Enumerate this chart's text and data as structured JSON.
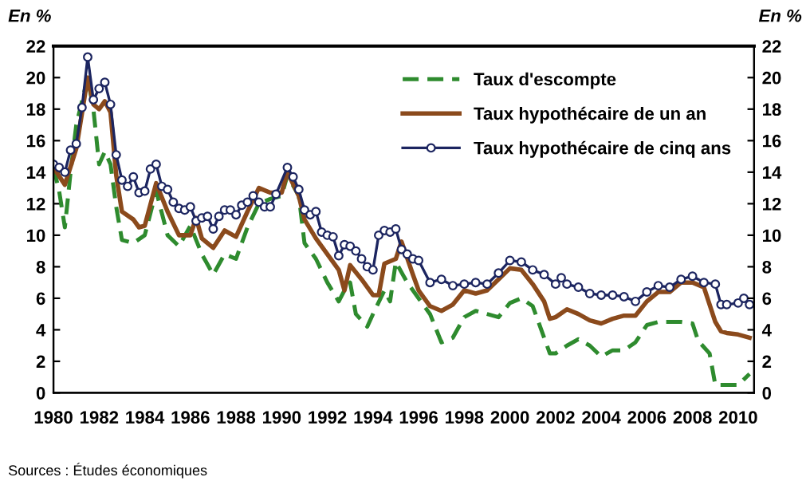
{
  "chart_data": {
    "type": "line",
    "ylabel": "En %",
    "y2label": "En %",
    "xlim": [
      1980,
      2010.7
    ],
    "xticks": [
      1980,
      1982,
      1984,
      1986,
      1988,
      1990,
      1992,
      1994,
      1996,
      1998,
      2000,
      2002,
      2004,
      2006,
      2008,
      2010
    ],
    "ylim": [
      0,
      22
    ],
    "yticks": [
      0,
      2,
      4,
      6,
      8,
      10,
      12,
      14,
      16,
      18,
      20,
      22
    ],
    "y2lim": [
      0,
      22
    ],
    "y2ticks": [
      0,
      2,
      4,
      6,
      8,
      10,
      12,
      14,
      16,
      18,
      20,
      22
    ],
    "grid": false,
    "legend": "top right",
    "annotations": [
      "Sources : Études économiques"
    ],
    "series": [
      {
        "name": "Taux d'escompte",
        "color": "#2e8b2e",
        "line_style": "dashed",
        "marker": "none",
        "x": [
          1980,
          1980.25,
          1980.5,
          1980.75,
          1981,
          1981.5,
          1981.75,
          1982,
          1982.25,
          1982.5,
          1982.75,
          1983,
          1983.5,
          1984,
          1984.5,
          1985,
          1985.5,
          1986,
          1986.5,
          1987,
          1987.5,
          1988,
          1988.5,
          1989,
          1989.5,
          1990,
          1990.25,
          1990.75,
          1991,
          1991.5,
          1992,
          1992.5,
          1992.75,
          1993,
          1993.25,
          1993.75,
          1994,
          1994.5,
          1994.75,
          1995,
          1995.5,
          1996,
          1996.5,
          1997,
          1997.5,
          1998,
          1998.5,
          1999,
          1999.5,
          2000,
          2000.5,
          2001,
          2001.5,
          2001.75,
          2002,
          2002.5,
          2003,
          2003.5,
          2004,
          2004.5,
          2005,
          2005.5,
          2006,
          2006.5,
          2007,
          2007.5,
          2008,
          2008.25,
          2008.75,
          2009,
          2009.5,
          2010,
          2010.5
        ],
        "values": [
          14.3,
          12.8,
          10.5,
          14.0,
          17.0,
          20.0,
          18.0,
          14.5,
          15.3,
          14.5,
          11.8,
          9.7,
          9.5,
          10.0,
          12.8,
          10.0,
          9.3,
          10.6,
          8.8,
          7.5,
          8.8,
          8.5,
          10.5,
          12.0,
          12.3,
          12.5,
          13.8,
          12.5,
          9.5,
          8.5,
          7.0,
          5.8,
          6.5,
          7.0,
          5.0,
          4.2,
          5.0,
          6.5,
          5.8,
          8.3,
          7.0,
          6.0,
          5.0,
          3.2,
          3.5,
          4.8,
          5.2,
          5.0,
          4.8,
          5.7,
          6.0,
          5.5,
          3.5,
          2.5,
          2.5,
          3.0,
          3.4,
          3.0,
          2.3,
          2.7,
          2.7,
          3.2,
          4.3,
          4.5,
          4.5,
          4.5,
          4.4,
          3.3,
          2.5,
          0.5,
          0.5,
          0.5,
          1.2
        ]
      },
      {
        "name": "Taux hypothécaire de un an",
        "color": "#8b4a1c",
        "line_style": "solid",
        "marker": "none",
        "x": [
          1980,
          1980.5,
          1981,
          1981.5,
          1981.75,
          1982,
          1982.25,
          1982.5,
          1982.75,
          1983,
          1983.5,
          1983.75,
          1984,
          1984.5,
          1985,
          1985.5,
          1986,
          1986.25,
          1986.5,
          1987,
          1987.5,
          1988,
          1988.5,
          1989,
          1989.5,
          1990,
          1990.25,
          1990.75,
          1991,
          1991.5,
          1992,
          1992.5,
          1992.75,
          1993,
          1993.5,
          1994,
          1994.25,
          1994.5,
          1995,
          1995.25,
          1995.75,
          1996,
          1996.5,
          1997,
          1997.5,
          1998,
          1998.5,
          1999,
          1999.5,
          2000,
          2000.5,
          2001,
          2001.5,
          2001.75,
          2002,
          2002.5,
          2003,
          2003.5,
          2004,
          2004.5,
          2005,
          2005.5,
          2006,
          2006.5,
          2007,
          2007.5,
          2008,
          2008.5,
          2009,
          2009.25,
          2009.5,
          2010,
          2010.5
        ],
        "values": [
          14.3,
          13.2,
          15.5,
          20.0,
          18.3,
          18.0,
          18.5,
          17.8,
          13.8,
          11.5,
          11.0,
          10.5,
          10.6,
          13.3,
          11.5,
          10.0,
          10.0,
          11.1,
          9.8,
          9.2,
          10.3,
          9.9,
          11.5,
          13.0,
          12.7,
          12.7,
          14.0,
          12.5,
          11.0,
          9.8,
          8.8,
          7.8,
          6.5,
          8.1,
          7.2,
          6.2,
          6.2,
          8.2,
          8.5,
          9.6,
          7.5,
          6.5,
          5.5,
          5.2,
          5.6,
          6.5,
          6.3,
          6.5,
          7.2,
          7.9,
          7.8,
          6.9,
          5.8,
          4.7,
          4.8,
          5.3,
          5.0,
          4.6,
          4.4,
          4.7,
          4.9,
          4.9,
          5.8,
          6.4,
          6.4,
          7.0,
          7.0,
          6.7,
          4.5,
          3.9,
          3.8,
          3.7,
          3.5
        ]
      },
      {
        "name": "Taux hypothécaire de cinq ans",
        "color": "#1c2560",
        "line_style": "solid",
        "marker": "circle",
        "x": [
          1980,
          1980.25,
          1980.5,
          1980.75,
          1981,
          1981.25,
          1981.5,
          1981.75,
          1982,
          1982.25,
          1982.5,
          1982.75,
          1983,
          1983.25,
          1983.5,
          1983.75,
          1984,
          1984.25,
          1984.5,
          1984.75,
          1985,
          1985.25,
          1985.5,
          1985.75,
          1986,
          1986.25,
          1986.5,
          1986.75,
          1987,
          1987.25,
          1987.5,
          1987.75,
          1988,
          1988.25,
          1988.5,
          1988.75,
          1989,
          1989.25,
          1989.5,
          1989.75,
          1990.25,
          1990.5,
          1990.75,
          1991,
          1991.25,
          1991.5,
          1991.75,
          1992,
          1992.25,
          1992.5,
          1992.75,
          1993,
          1993.25,
          1993.5,
          1993.75,
          1994,
          1994.25,
          1994.5,
          1994.75,
          1995,
          1995.25,
          1995.5,
          1995.75,
          1996,
          1996.5,
          1997,
          1997.5,
          1998,
          1998.5,
          1999,
          1999.5,
          2000,
          2000.5,
          2001,
          2001.5,
          2002,
          2002.25,
          2002.5,
          2003,
          2003.5,
          2004,
          2004.5,
          2005,
          2005.5,
          2006,
          2006.5,
          2007,
          2007.5,
          2008,
          2008.5,
          2009,
          2009.25,
          2009.5,
          2010,
          2010.25,
          2010.5
        ],
        "values": [
          14.5,
          14.3,
          14.0,
          15.4,
          15.8,
          18.1,
          21.3,
          18.6,
          19.3,
          19.7,
          18.3,
          15.1,
          13.5,
          13.1,
          13.7,
          12.7,
          12.8,
          14.2,
          14.5,
          13.1,
          12.9,
          12.1,
          11.7,
          11.6,
          11.8,
          10.9,
          11.1,
          11.2,
          10.4,
          11.2,
          11.6,
          11.6,
          11.3,
          11.9,
          12.1,
          12.5,
          12.1,
          11.8,
          11.8,
          12.6,
          14.3,
          13.7,
          12.9,
          11.6,
          11.3,
          11.5,
          10.2,
          10.0,
          9.9,
          8.7,
          9.4,
          9.3,
          9.0,
          8.5,
          8.0,
          7.8,
          10.0,
          10.3,
          10.2,
          10.4,
          9.1,
          8.8,
          8.5,
          8.4,
          7.0,
          7.2,
          6.8,
          6.9,
          7.0,
          6.9,
          7.6,
          8.4,
          8.3,
          7.8,
          7.5,
          6.9,
          7.3,
          6.9,
          6.7,
          6.3,
          6.2,
          6.2,
          6.1,
          5.8,
          6.4,
          6.8,
          6.7,
          7.2,
          7.4,
          7.0,
          6.9,
          5.6,
          5.6,
          5.7,
          6.0,
          5.6
        ]
      }
    ]
  }
}
